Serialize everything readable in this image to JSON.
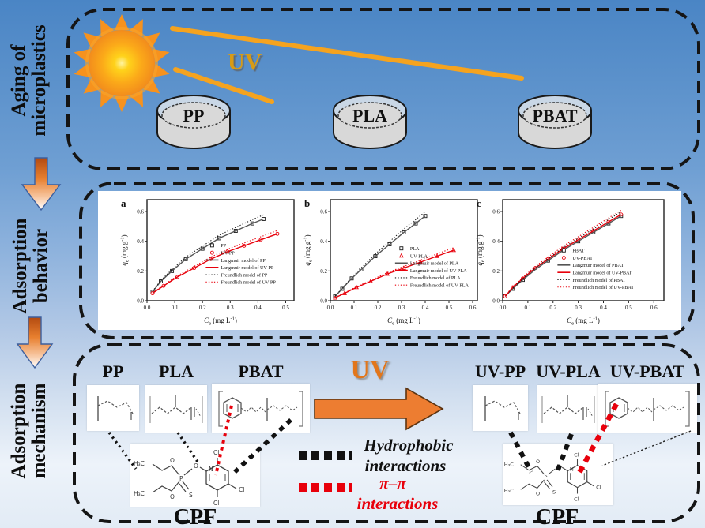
{
  "colors": {
    "background_top": "#4a85c5",
    "background_bottom": "#e2ebf5",
    "accent_orange": "#ed7d31",
    "uv_ray_orange": "#f5a31f",
    "series_red": "#e8000b",
    "series_black": "#1a1a1a",
    "dish_fill": "#d8d8d8",
    "panel_white": "#ffffff"
  },
  "left_labels": [
    {
      "line1": "Aging of",
      "line2": "microplastics"
    },
    {
      "line1": "Adsorption",
      "line2": "behavior"
    },
    {
      "line1": "Adsorption",
      "line2": "mechanism"
    }
  ],
  "top_section": {
    "uv_label": "UV",
    "dishes": [
      {
        "label": "PP"
      },
      {
        "label": "PLA"
      },
      {
        "label": "PBAT"
      }
    ]
  },
  "bottom_section": {
    "uv_label": "UV",
    "pristine_polymers": [
      {
        "label": "PP"
      },
      {
        "label": "PLA"
      },
      {
        "label": "PBAT"
      }
    ],
    "aged_polymers": [
      {
        "label": "UV-PP"
      },
      {
        "label": "UV-PLA"
      },
      {
        "label": "UV-PBAT"
      }
    ],
    "cpf_label_left": "CPF",
    "cpf_label_right": "CPF",
    "atoms": {
      "h3c": "H₃C",
      "o": "O",
      "p": "P",
      "s": "S",
      "n": "N",
      "cl": "Cl"
    },
    "legend": [
      {
        "line1": "Hydrophobic",
        "line2": "interactions",
        "color": "#111111"
      },
      {
        "line1": "π–π",
        "line2": "interactions",
        "color": "#e8000b"
      }
    ]
  },
  "chart_data": [
    {
      "type": "scatter",
      "panel_label": "a",
      "xlabel": {
        "base": "C",
        "sub": "e",
        "rest": " (mg L",
        "sup": "-1",
        "end": ")"
      },
      "ylabel": {
        "base": "q",
        "sub": "e",
        "rest": " (mg g",
        "sup": "-1",
        "end": ")"
      },
      "xlim": [
        0,
        0.53
      ],
      "xticks": [
        0.0,
        0.1,
        0.2,
        0.3,
        0.4,
        0.5
      ],
      "ylim": [
        0,
        0.68
      ],
      "yticks": [
        0.0,
        0.2,
        0.4,
        0.6
      ],
      "legend_pos": {
        "x": 0.4,
        "y": 0.47
      },
      "series": [
        {
          "name": "PP",
          "color": "#1a1a1a",
          "marker": "square",
          "line": "none",
          "points": [
            [
              0.02,
              0.06
            ],
            [
              0.05,
              0.13
            ],
            [
              0.09,
              0.2
            ],
            [
              0.14,
              0.28
            ],
            [
              0.2,
              0.35
            ],
            [
              0.26,
              0.42
            ],
            [
              0.32,
              0.47
            ],
            [
              0.38,
              0.52
            ],
            [
              0.42,
              0.55
            ]
          ]
        },
        {
          "name": "UV-PP",
          "color": "#e8000b",
          "marker": "circle",
          "line": "none",
          "points": [
            [
              0.02,
              0.05
            ],
            [
              0.06,
              0.1
            ],
            [
              0.11,
              0.16
            ],
            [
              0.17,
              0.22
            ],
            [
              0.23,
              0.28
            ],
            [
              0.29,
              0.33
            ],
            [
              0.35,
              0.37
            ],
            [
              0.41,
              0.41
            ],
            [
              0.47,
              0.45
            ]
          ]
        },
        {
          "name": "Langmuir model of PP",
          "color": "#555555",
          "line": "solid",
          "points_ref": "PP"
        },
        {
          "name": "Langmuir model of UV-PP",
          "color": "#e8000b",
          "line": "solid",
          "points_ref": "UV-PP"
        },
        {
          "name": "Freundlich model of PP",
          "color": "#1a1a1a",
          "line": "dotted",
          "points_ref": "PP"
        },
        {
          "name": "Freundlich model of UV-PP",
          "color": "#e8000b",
          "line": "dotted",
          "points_ref": "UV-PP"
        }
      ]
    },
    {
      "type": "scatter",
      "panel_label": "b",
      "xlabel": {
        "base": "C",
        "sub": "e",
        "rest": " (mg L",
        "sup": "-1",
        "end": ")"
      },
      "ylabel": {
        "base": "q",
        "sub": "e",
        "rest": " (mg g",
        "sup": "-1",
        "end": ")"
      },
      "xlim": [
        0,
        0.62
      ],
      "xticks": [
        0.0,
        0.1,
        0.2,
        0.3,
        0.4,
        0.5,
        0.6
      ],
      "ylim": [
        0,
        0.68
      ],
      "yticks": [
        0.0,
        0.2,
        0.4,
        0.6
      ],
      "legend_pos": {
        "x": 0.44,
        "y": 0.5
      },
      "series": [
        {
          "name": "PLA",
          "color": "#1a1a1a",
          "marker": "square",
          "line": "none",
          "points": [
            [
              0.02,
              0.03
            ],
            [
              0.05,
              0.08
            ],
            [
              0.09,
              0.15
            ],
            [
              0.13,
              0.21
            ],
            [
              0.19,
              0.3
            ],
            [
              0.25,
              0.38
            ],
            [
              0.31,
              0.46
            ],
            [
              0.36,
              0.52
            ],
            [
              0.4,
              0.57
            ]
          ]
        },
        {
          "name": "UV-PLA",
          "color": "#e8000b",
          "marker": "triangle",
          "line": "none",
          "points": [
            [
              0.02,
              0.02
            ],
            [
              0.06,
              0.05
            ],
            [
              0.11,
              0.09
            ],
            [
              0.17,
              0.13
            ],
            [
              0.24,
              0.18
            ],
            [
              0.31,
              0.22
            ],
            [
              0.38,
              0.26
            ],
            [
              0.45,
              0.3
            ],
            [
              0.52,
              0.34
            ]
          ]
        },
        {
          "name": "Langmuir model of PLA",
          "color": "#555555",
          "line": "solid",
          "points_ref": "PLA"
        },
        {
          "name": "Langmuir model of UV-PLA",
          "color": "#e8000b",
          "line": "solid",
          "points_ref": "UV-PLA"
        },
        {
          "name": "Freundlich model of PLA",
          "color": "#1a1a1a",
          "line": "dotted",
          "points_ref": "PLA"
        },
        {
          "name": "Freundlich model of UV-PLA",
          "color": "#e8000b",
          "line": "dotted",
          "points_ref": "UV-PLA"
        }
      ]
    },
    {
      "type": "scatter",
      "panel_label": "c",
      "xlabel": {
        "base": "C",
        "sub": "e",
        "rest": " (mg L",
        "sup": "-1",
        "end": ")"
      },
      "ylabel": {
        "base": "q",
        "sub": "e",
        "rest": " (mg g",
        "sup": "-1",
        "end": ")"
      },
      "xlim": [
        0,
        0.64
      ],
      "xticks": [
        0.0,
        0.1,
        0.2,
        0.3,
        0.4,
        0.5,
        0.6
      ],
      "ylim": [
        0,
        0.68
      ],
      "yticks": [
        0.0,
        0.2,
        0.4,
        0.6
      ],
      "legend_pos": {
        "x": 0.34,
        "y": 0.52
      },
      "series": [
        {
          "name": "PBAT",
          "color": "#1a1a1a",
          "marker": "square",
          "line": "none",
          "points": [
            [
              0.01,
              0.03
            ],
            [
              0.04,
              0.08
            ],
            [
              0.08,
              0.14
            ],
            [
              0.13,
              0.21
            ],
            [
              0.18,
              0.27
            ],
            [
              0.24,
              0.34
            ],
            [
              0.3,
              0.4
            ],
            [
              0.36,
              0.46
            ],
            [
              0.42,
              0.52
            ],
            [
              0.47,
              0.57
            ]
          ]
        },
        {
          "name": "UV-PBAT",
          "color": "#e8000b",
          "marker": "circle",
          "line": "none",
          "points": [
            [
              0.01,
              0.03
            ],
            [
              0.04,
              0.09
            ],
            [
              0.08,
              0.15
            ],
            [
              0.13,
              0.22
            ],
            [
              0.18,
              0.28
            ],
            [
              0.24,
              0.35
            ],
            [
              0.3,
              0.41
            ],
            [
              0.36,
              0.47
            ],
            [
              0.42,
              0.53
            ],
            [
              0.47,
              0.58
            ]
          ]
        },
        {
          "name": "Langmuir model of PBAT",
          "color": "#555555",
          "line": "solid",
          "points_ref": "PBAT"
        },
        {
          "name": "Langmuir model of UV-PBAT",
          "color": "#e8000b",
          "line": "solid",
          "points_ref": "UV-PBAT"
        },
        {
          "name": "Freundlich model of PBAT",
          "color": "#1a1a1a",
          "line": "dotted",
          "points_ref": "PBAT"
        },
        {
          "name": "Freundlich model of UV-PBAT",
          "color": "#e8000b",
          "line": "dotted",
          "points_ref": "UV-PBAT"
        }
      ]
    }
  ]
}
